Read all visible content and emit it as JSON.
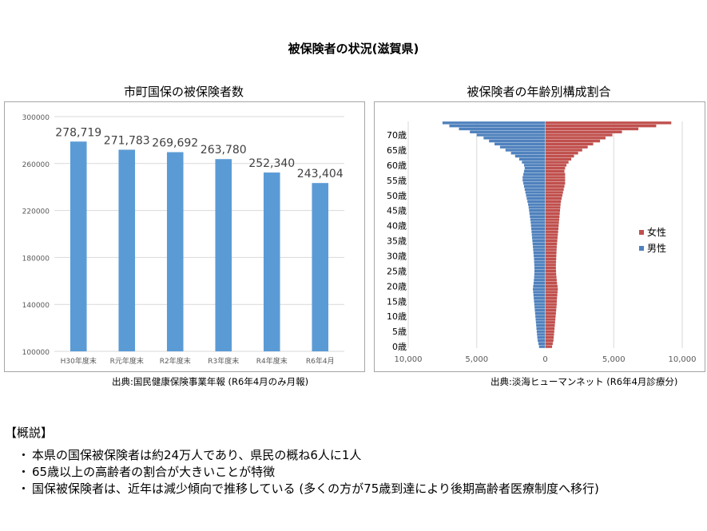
{
  "page_title": "被保険者の状況(滋賀県)",
  "left_chart": {
    "title": "市町国保の被保険者数",
    "source": "出典:国民健康保険事業年報 (R6年4月のみ月報)"
  },
  "right_chart": {
    "title": "被保険者の年齢別構成割合",
    "source": "出典:淡海ヒューマンネット (R6年4月診療分)"
  },
  "summary": {
    "heading": "【概説】",
    "bullets": [
      "本県の国保被保険者は約24万人であり、県民の概ね6人に1人",
      "65歳以上の高齢者の割合が大きいことが特徴",
      "国保被保険者は、近年は減少傾向で推移している (多くの方が75歳到達により後期高齢者医療制度へ移行)"
    ],
    "bullet_mark": "・"
  },
  "colors": {
    "bar": "#5b9bd5",
    "female": "#c0504d",
    "male": "#4f81bd"
  },
  "chart_data": [
    {
      "type": "bar",
      "categories": [
        "H30年度末",
        "R元年度末",
        "R2年度末",
        "R3年度末",
        "R4年度末",
        "R6年4月"
      ],
      "values": [
        278719,
        271783,
        269692,
        263780,
        252340,
        243404
      ],
      "data_labels": [
        "278,719",
        "271,783",
        "269,692",
        "263,780",
        "252,340",
        "243,404"
      ],
      "ylim": [
        100000,
        300000
      ],
      "yticks": [
        100000,
        140000,
        180000,
        220000,
        260000,
        300000
      ],
      "ytick_labels": [
        "100000",
        "140000",
        "180000",
        "220000",
        "260000",
        "300000"
      ],
      "grid": true
    },
    {
      "type": "bar",
      "orientation": "horizontal-pyramid",
      "ages": [
        0,
        1,
        2,
        3,
        4,
        5,
        6,
        7,
        8,
        9,
        10,
        11,
        12,
        13,
        14,
        15,
        16,
        17,
        18,
        19,
        20,
        21,
        22,
        23,
        24,
        25,
        26,
        27,
        28,
        29,
        30,
        31,
        32,
        33,
        34,
        35,
        36,
        37,
        38,
        39,
        40,
        41,
        42,
        43,
        44,
        45,
        46,
        47,
        48,
        49,
        50,
        51,
        52,
        53,
        54,
        55,
        56,
        57,
        58,
        59,
        60,
        61,
        62,
        63,
        64,
        65,
        66,
        67,
        68,
        69,
        70,
        71,
        72,
        73,
        74
      ],
      "age_labels": [
        "0歳",
        "5歳",
        "10歳",
        "15歳",
        "20歳",
        "25歳",
        "30歳",
        "35歳",
        "40歳",
        "45歳",
        "50歳",
        "55歳",
        "60歳",
        "65歳",
        "70歳"
      ],
      "age_label_values": [
        0,
        5,
        10,
        15,
        20,
        25,
        30,
        35,
        40,
        45,
        50,
        55,
        60,
        65,
        70
      ],
      "series": [
        {
          "name": "女性",
          "values": [
            500,
            550,
            600,
            620,
            640,
            660,
            680,
            700,
            720,
            740,
            760,
            780,
            800,
            820,
            840,
            850,
            860,
            880,
            900,
            920,
            900,
            860,
            840,
            820,
            800,
            790,
            780,
            780,
            790,
            800,
            810,
            820,
            830,
            840,
            860,
            880,
            900,
            920,
            940,
            960,
            980,
            1000,
            1020,
            1040,
            1060,
            1080,
            1100,
            1120,
            1150,
            1200,
            1250,
            1300,
            1350,
            1400,
            1450,
            1450,
            1450,
            1450,
            1400,
            1450,
            1550,
            1700,
            1900,
            2100,
            2400,
            2700,
            3100,
            3500,
            4000,
            4400,
            4900,
            5600,
            6800,
            8100,
            9200
          ]
        },
        {
          "name": "男性",
          "values": [
            -450,
            -500,
            -550,
            -580,
            -600,
            -620,
            -640,
            -660,
            -680,
            -700,
            -720,
            -740,
            -760,
            -780,
            -800,
            -820,
            -840,
            -860,
            -880,
            -900,
            -880,
            -850,
            -830,
            -810,
            -800,
            -790,
            -790,
            -800,
            -810,
            -820,
            -840,
            -860,
            -880,
            -900,
            -920,
            -940,
            -960,
            -980,
            -1000,
            -1020,
            -1040,
            -1060,
            -1090,
            -1120,
            -1150,
            -1180,
            -1210,
            -1250,
            -1300,
            -1350,
            -1400,
            -1450,
            -1500,
            -1550,
            -1600,
            -1650,
            -1650,
            -1600,
            -1550,
            -1500,
            -1550,
            -1700,
            -1900,
            -2200,
            -2500,
            -2900,
            -3300,
            -3700,
            -4100,
            -4500,
            -5000,
            -5500,
            -6300,
            -7000,
            -7500
          ]
        }
      ],
      "xlim": [
        -10000,
        10000
      ],
      "xticks": [
        -10000,
        -5000,
        0,
        5000,
        10000
      ],
      "xtick_labels": [
        "10,000",
        "5,000",
        "0",
        "5,000",
        "10,000"
      ],
      "legend": [
        "女性",
        "男性"
      ],
      "legend_position": "right"
    }
  ]
}
